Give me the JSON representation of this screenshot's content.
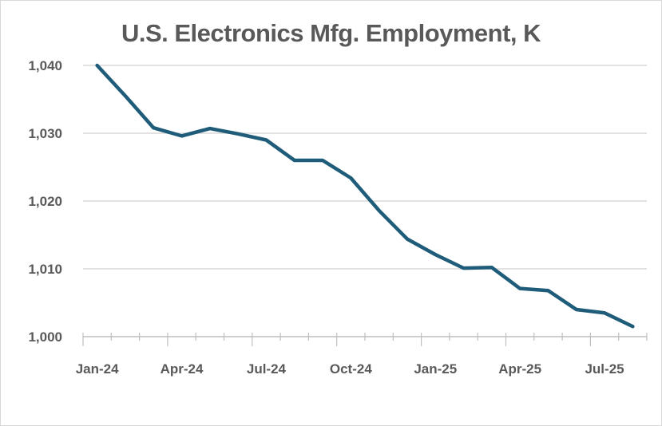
{
  "chart_data": {
    "type": "line",
    "title": "U.S. Electronics Mfg. Employment, K",
    "xlabel": "",
    "ylabel": "",
    "categories": [
      "Jan-24",
      "Feb-24",
      "Mar-24",
      "Apr-24",
      "May-24",
      "Jun-24",
      "Jul-24",
      "Aug-24",
      "Sep-24",
      "Oct-24",
      "Nov-24",
      "Dec-24",
      "Jan-25",
      "Feb-25",
      "Mar-25",
      "Apr-25",
      "May-25",
      "Jun-25",
      "Jul-25",
      "Aug-25"
    ],
    "x_tick_labels": [
      "Jan-24",
      "Apr-24",
      "Jul-24",
      "Oct-24",
      "Jan-25",
      "Apr-25",
      "Jul-25"
    ],
    "y_tick_labels": [
      "1,000",
      "1,010",
      "1,020",
      "1,030",
      "1,040"
    ],
    "y_ticks": [
      1000,
      1010,
      1020,
      1030,
      1040
    ],
    "ylim": [
      1000,
      1040
    ],
    "grid": "horizontal",
    "legend": "none",
    "series": [
      {
        "color": "#1f5c7a",
        "values": [
          1040.0,
          1035.5,
          1030.8,
          1029.6,
          1030.7,
          1029.9,
          1029.0,
          1026.0,
          1026.0,
          1023.4,
          1018.6,
          1014.4,
          1012.1,
          1010.1,
          1010.2,
          1007.1,
          1006.8,
          1004.0,
          1003.5,
          1001.5
        ]
      }
    ]
  }
}
